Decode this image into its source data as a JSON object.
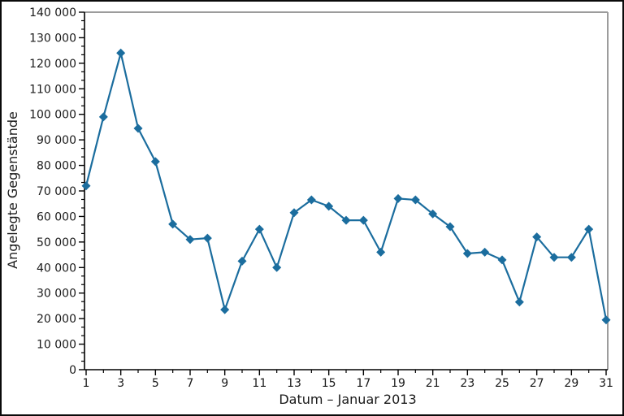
{
  "window": {
    "background": "#ffffff",
    "border_color": "#0a0a0a"
  },
  "chart_data": {
    "type": "line",
    "title": "",
    "xlabel": "Datum – Januar 2013",
    "ylabel": "Angelegte Gegenstände",
    "x": [
      1,
      2,
      3,
      4,
      5,
      6,
      7,
      8,
      9,
      10,
      11,
      12,
      13,
      14,
      15,
      16,
      17,
      18,
      19,
      20,
      21,
      22,
      23,
      24,
      25,
      26,
      27,
      28,
      29,
      30,
      31
    ],
    "values": [
      72000,
      99000,
      124000,
      94500,
      81500,
      57000,
      51000,
      51500,
      23500,
      42500,
      55000,
      40000,
      61500,
      66500,
      64000,
      58500,
      58500,
      46000,
      67000,
      66500,
      61000,
      56000,
      45500,
      46000,
      43000,
      26500,
      52000,
      44000,
      44000,
      55000,
      19500
    ],
    "xlim": [
      1,
      31
    ],
    "ylim": [
      0,
      140000
    ],
    "yticks": [
      0,
      10000,
      20000,
      30000,
      40000,
      50000,
      60000,
      70000,
      80000,
      90000,
      100000,
      110000,
      120000,
      130000,
      140000
    ],
    "ytick_labels": [
      "0",
      "10 000",
      "20 000",
      "30 000",
      "40 000",
      "50 000",
      "60 000",
      "70 000",
      "80 000",
      "90 000",
      "100 000",
      "110 000",
      "120 000",
      "130 000",
      "140 000"
    ],
    "xticks_labeled": [
      1,
      3,
      5,
      7,
      9,
      11,
      13,
      15,
      17,
      19,
      21,
      23,
      25,
      27,
      29,
      31
    ],
    "xtick_labels": [
      "1",
      "3",
      "5",
      "7",
      "9",
      "11",
      "13",
      "15",
      "17",
      "19",
      "21",
      "23",
      "25",
      "27",
      "29",
      "31"
    ],
    "x_minor_ticks": [
      2,
      4,
      6,
      8,
      10,
      12,
      14,
      16,
      18,
      20,
      22,
      24,
      26,
      28,
      30
    ],
    "y_minor_divisions": 3,
    "grid": false,
    "legend": "none",
    "marker": "diamond",
    "line_color": "#1b6d9e",
    "marker_color": "#1b6d9e",
    "axis_color": "#000000",
    "box_color": "#9c9c9c",
    "text_color": "#1a1a1a"
  }
}
